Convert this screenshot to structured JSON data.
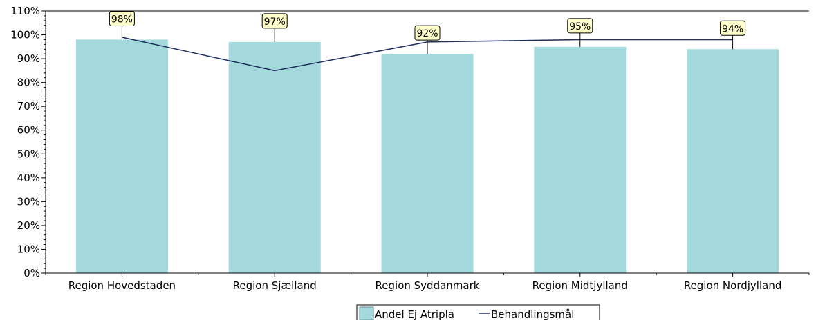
{
  "chart_data": {
    "type": "bar",
    "categories": [
      "Region Hovedstaden",
      "Region Sjælland",
      "Region Syddanmark",
      "Region Midtjylland",
      "Region Nordjylland"
    ],
    "series": [
      {
        "name": "Andel Ej Atripla",
        "type": "bar",
        "values": [
          98,
          97,
          92,
          95,
          94
        ],
        "color": "#a3d9dc"
      },
      {
        "name": "Behandlingsmål",
        "type": "line",
        "values": [
          99,
          85,
          97,
          98,
          98
        ],
        "color": "#1c2e5c"
      }
    ],
    "data_labels": [
      "98%",
      "97%",
      "92%",
      "95%",
      "94%"
    ],
    "y_ticks": [
      "0%",
      "10%",
      "20%",
      "30%",
      "40%",
      "50%",
      "60%",
      "70%",
      "80%",
      "90%",
      "100%",
      "110%"
    ],
    "ylim": [
      0,
      110
    ],
    "grid": false,
    "legend_position": "bottom-center",
    "label_box_color": "#ffffcc"
  }
}
